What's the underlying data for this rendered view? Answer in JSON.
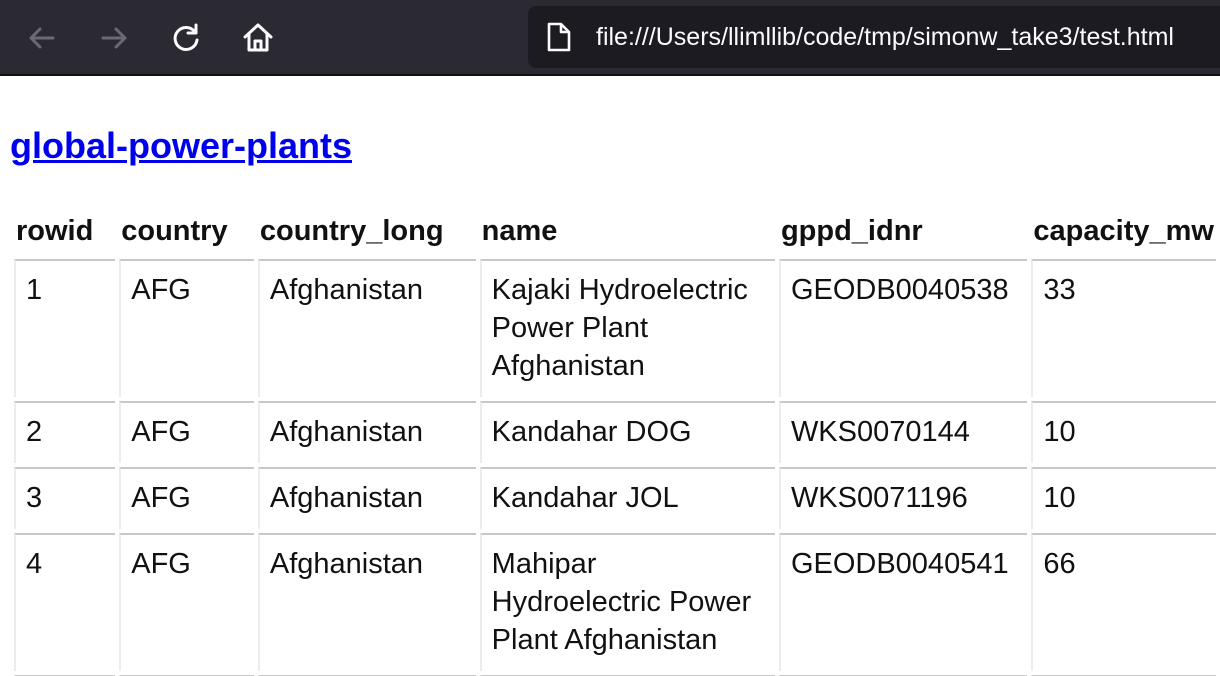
{
  "browser": {
    "back_icon": "arrow-left-icon",
    "forward_icon": "arrow-right-icon",
    "reload_icon": "reload-icon",
    "home_icon": "home-icon",
    "page_icon": "page-icon",
    "url": "file:///Users/llimllib/code/tmp/simonw_take3/test.html",
    "colors": {
      "toolbar": "#2b2a33",
      "urlbar": "#1c1b22",
      "link": "#0000ee"
    }
  },
  "page": {
    "title_link": "global-power-plants",
    "table": {
      "headers": [
        "rowid",
        "country",
        "country_long",
        "name",
        "gppd_idnr",
        "capacity_mw"
      ],
      "rows": [
        [
          "1",
          "AFG",
          "Afghanistan",
          "Kajaki Hydroelectric Power Plant Afghanistan",
          "GEODB0040538",
          "33"
        ],
        [
          "2",
          "AFG",
          "Afghanistan",
          "Kandahar DOG",
          "WKS0070144",
          "10"
        ],
        [
          "3",
          "AFG",
          "Afghanistan",
          "Kandahar JOL",
          "WKS0071196",
          "10"
        ],
        [
          "4",
          "AFG",
          "Afghanistan",
          "Mahipar Hydroelectric Power Plant Afghanistan",
          "GEODB0040541",
          "66"
        ],
        [
          "",
          "",
          "",
          "",
          "",
          ""
        ]
      ]
    }
  }
}
